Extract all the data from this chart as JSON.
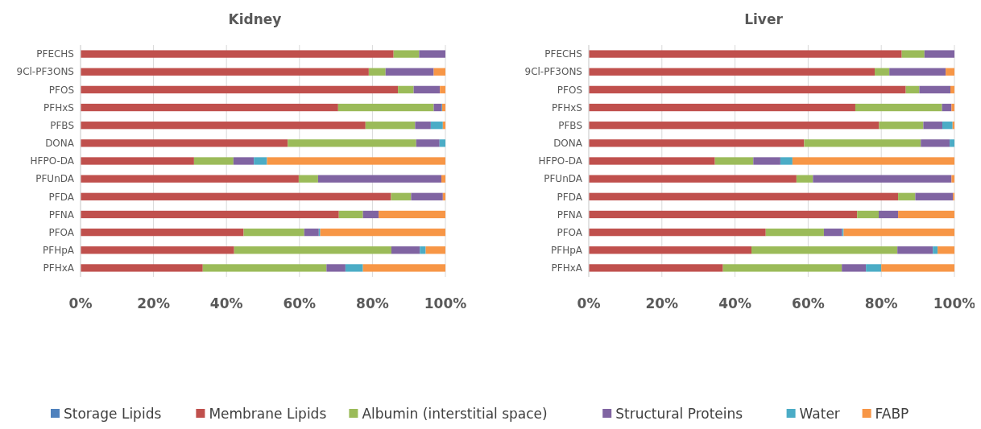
{
  "chart_data": [
    {
      "type": "bar",
      "orientation": "horizontal",
      "stacked": true,
      "title": "Kidney",
      "categories": [
        "PFECHS",
        "9Cl-PF3ONS",
        "PFOS",
        "PFHxS",
        "PFBS",
        "DONA",
        "HFPO-DA",
        "PFUnDA",
        "PFDA",
        "PFNA",
        "PFOA",
        "PFHpA",
        "PFHxA"
      ],
      "series": [
        {
          "name": "Storage Lipids",
          "color": "#4f81bd",
          "values": [
            0,
            0,
            0,
            0,
            0,
            0,
            0,
            0,
            0,
            0,
            0,
            0,
            0
          ]
        },
        {
          "name": "Membrane Lipids",
          "color": "#c0504d",
          "values": [
            85.8,
            79.0,
            87.0,
            70.6,
            78.1,
            56.8,
            31.1,
            59.8,
            85.1,
            70.8,
            44.7,
            42.1,
            33.5
          ]
        },
        {
          "name": "Albumin (interstitial space)",
          "color": "#9bbb59",
          "values": [
            7.0,
            4.6,
            4.3,
            26.2,
            13.6,
            35.2,
            10.8,
            5.3,
            5.5,
            6.6,
            16.6,
            43.1,
            33.9
          ]
        },
        {
          "name": "Structural Proteins",
          "color": "#8064a2",
          "values": [
            7.2,
            13.2,
            7.2,
            2.1,
            4.3,
            6.4,
            5.6,
            33.8,
            8.7,
            4.3,
            4.0,
            7.8,
            5.2
          ]
        },
        {
          "name": "Water",
          "color": "#4bacc6",
          "values": [
            0,
            0,
            0,
            0.2,
            3.3,
            1.6,
            3.6,
            0,
            0,
            0,
            0.4,
            1.6,
            4.8
          ]
        },
        {
          "name": "FABP",
          "color": "#f79646",
          "values": [
            0,
            3.2,
            1.5,
            0.9,
            0.7,
            0,
            48.9,
            1.1,
            0.7,
            18.3,
            34.3,
            5.4,
            22.6
          ]
        }
      ],
      "xlim": [
        0,
        100
      ],
      "xticks": [
        {
          "value": 0,
          "label": "0%"
        },
        {
          "value": 20,
          "label": "20%"
        },
        {
          "value": 40,
          "label": "40%"
        },
        {
          "value": 60,
          "label": "60%"
        },
        {
          "value": 80,
          "label": "80%"
        },
        {
          "value": 100,
          "label": "100%"
        }
      ],
      "grid": "x",
      "legend": "bottom"
    },
    {
      "type": "bar",
      "orientation": "horizontal",
      "stacked": true,
      "title": "Liver",
      "categories": [
        "PFECHS",
        "9Cl-PF3ONS",
        "PFOS",
        "PFHxS",
        "PFBS",
        "DONA",
        "HFPO-DA",
        "PFUnDA",
        "PFDA",
        "PFNA",
        "PFOA",
        "PFHpA",
        "PFHxA"
      ],
      "series": [
        {
          "color": "#4f81bd",
          "values": [
            0,
            0,
            0,
            0,
            0,
            0,
            0,
            0,
            0,
            0,
            0,
            0,
            0
          ]
        },
        {
          "color": "#c0504d",
          "values": [
            85.6,
            78.2,
            86.7,
            72.9,
            79.4,
            58.9,
            34.5,
            56.8,
            84.6,
            73.4,
            48.4,
            44.5,
            36.7
          ]
        },
        {
          "color": "#9bbb59",
          "values": [
            6.2,
            4.0,
            3.7,
            23.7,
            12.1,
            31.9,
            10.5,
            4.5,
            4.7,
            5.9,
            15.9,
            39.9,
            32.5
          ]
        },
        {
          "color": "#8064a2",
          "values": [
            8.2,
            15.4,
            8.5,
            2.6,
            5.2,
            7.9,
            7.4,
            37.9,
            10.3,
            5.3,
            5.0,
            9.7,
            6.6
          ]
        },
        {
          "color": "#4bacc6",
          "values": [
            0,
            0,
            0,
            0,
            2.8,
            1.3,
            3.3,
            0,
            0,
            0,
            0.4,
            1.3,
            4.2
          ]
        },
        {
          "color": "#f79646",
          "values": [
            0,
            2.4,
            1.1,
            0.8,
            0.5,
            0,
            44.3,
            0.8,
            0.4,
            15.4,
            30.3,
            4.6,
            20.0
          ]
        }
      ],
      "xlim": [
        0,
        100
      ],
      "xticks": [
        {
          "value": 0,
          "label": "0%"
        },
        {
          "value": 20,
          "label": "20%"
        },
        {
          "value": 40,
          "label": "40%"
        },
        {
          "value": 60,
          "label": "60%"
        },
        {
          "value": 80,
          "label": "80%"
        },
        {
          "value": 100,
          "label": "100%"
        }
      ],
      "grid": "x"
    }
  ]
}
